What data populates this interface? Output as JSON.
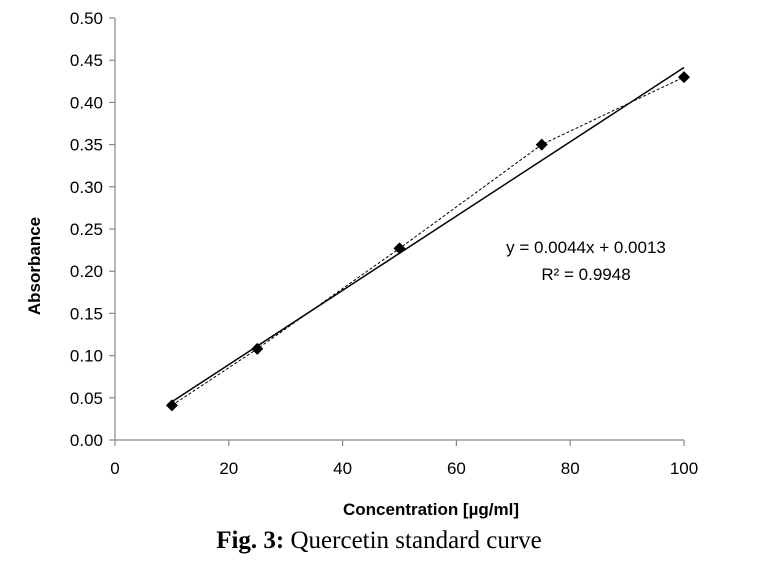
{
  "caption": {
    "label": "Fig. 3:",
    "text": " Quercetin standard curve"
  },
  "chart_data": {
    "type": "scatter",
    "xlabel": "Concentration [µg/ml]",
    "ylabel": "Absorbance",
    "xlim": [
      0,
      100
    ],
    "ylim": [
      0,
      0.5
    ],
    "x_ticks": [
      0,
      20,
      40,
      60,
      80,
      100
    ],
    "y_ticks": [
      0.0,
      0.05,
      0.1,
      0.15,
      0.2,
      0.25,
      0.3,
      0.35,
      0.4,
      0.45,
      0.5
    ],
    "x_tick_labels": [
      "0",
      "20",
      "40",
      "60",
      "80",
      "100"
    ],
    "y_tick_labels": [
      "0.00",
      "0.05",
      "0.10",
      "0.15",
      "0.20",
      "0.25",
      "0.30",
      "0.35",
      "0.40",
      "0.45",
      "0.50"
    ],
    "grid": false,
    "legend": false,
    "series": [
      {
        "marker": "diamond",
        "connect": "dotted",
        "color": "#000000",
        "x": [
          10,
          25,
          50,
          75,
          100
        ],
        "y": [
          0.041,
          0.108,
          0.227,
          0.35,
          0.43
        ]
      }
    ],
    "trendline": {
      "kind": "linear",
      "slope": 0.0044,
      "intercept": 0.0013,
      "x_range": [
        10,
        100
      ],
      "color": "#000000"
    },
    "annotations": [
      "y = 0.0044x + 0.0013",
      "R² = 0.9948"
    ]
  }
}
